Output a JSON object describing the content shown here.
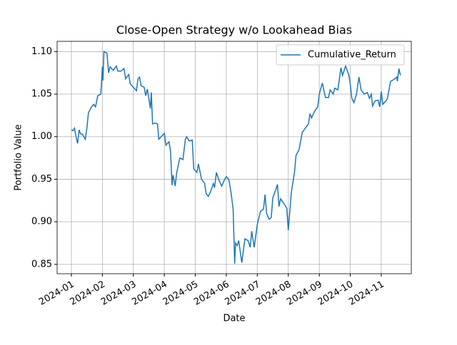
{
  "chart_data": {
    "type": "line",
    "title": "Close-Open Strategy w/o Lookahead Bias",
    "x_label": "Date",
    "y_label": "Portfolio Value",
    "x": [
      0,
      0.05,
      0.1,
      0.15,
      0.2,
      0.25,
      0.3,
      0.35,
      0.45,
      0.5,
      0.55,
      0.65,
      0.72,
      0.78,
      0.85,
      0.95,
      1.0,
      1.02,
      1.05,
      1.15,
      1.2,
      1.25,
      1.35,
      1.45,
      1.5,
      1.6,
      1.7,
      1.75,
      1.85,
      1.9,
      2.0,
      2.1,
      2.15,
      2.2,
      2.25,
      2.35,
      2.4,
      2.45,
      2.5,
      2.55,
      2.58,
      2.62,
      2.7,
      2.78,
      2.82,
      2.9,
      3.0,
      3.05,
      3.15,
      3.2,
      3.25,
      3.28,
      3.35,
      3.4,
      3.5,
      3.6,
      3.68,
      3.72,
      3.8,
      3.9,
      3.95,
      4.05,
      4.1,
      4.2,
      4.3,
      4.35,
      4.42,
      4.5,
      4.58,
      4.62,
      4.68,
      4.75,
      4.85,
      4.95,
      5.0,
      5.08,
      5.15,
      5.22,
      5.27,
      5.3,
      5.35,
      5.4,
      5.5,
      5.6,
      5.7,
      5.77,
      5.82,
      5.9,
      6.0,
      6.1,
      6.2,
      6.25,
      6.3,
      6.38,
      6.45,
      6.5,
      6.6,
      6.65,
      6.7,
      6.75,
      6.85,
      6.95,
      7.0,
      7.1,
      7.2,
      7.25,
      7.35,
      7.45,
      7.55,
      7.65,
      7.7,
      7.75,
      7.85,
      7.95,
      8.0,
      8.1,
      8.2,
      8.3,
      8.35,
      8.45,
      8.5,
      8.6,
      8.7,
      8.75,
      8.85,
      8.95,
      9.0,
      9.05,
      9.12,
      9.2,
      9.28,
      9.35,
      9.45,
      9.55,
      9.62,
      9.68,
      9.72,
      9.8,
      9.9,
      9.95,
      10.0,
      10.05,
      10.15,
      10.2,
      10.25,
      10.3,
      10.4,
      10.5,
      10.52,
      10.57,
      10.62
    ],
    "series": [
      {
        "name": "Cumulative_Return",
        "color": "#1f77b4",
        "values": [
          1.008,
          1.007,
          1.01,
          1.0,
          0.992,
          1.008,
          1.003,
          1.003,
          0.997,
          1.01,
          1.028,
          1.035,
          1.038,
          1.035,
          1.048,
          1.05,
          1.082,
          1.066,
          1.1,
          1.098,
          1.075,
          1.082,
          1.078,
          1.083,
          1.077,
          1.077,
          1.08,
          1.068,
          1.073,
          1.062,
          1.058,
          1.054,
          1.068,
          1.07,
          1.06,
          1.058,
          1.048,
          1.056,
          1.045,
          1.033,
          1.052,
          1.015,
          1.016,
          1.015,
          0.997,
          1.0,
          1.004,
          0.99,
          0.994,
          0.983,
          0.943,
          0.955,
          0.942,
          0.958,
          0.975,
          0.973,
          0.997,
          1.0,
          0.995,
          0.996,
          0.962,
          0.958,
          0.968,
          0.95,
          0.945,
          0.933,
          0.93,
          0.936,
          0.945,
          0.94,
          0.958,
          0.95,
          0.942,
          0.95,
          0.953,
          0.95,
          0.935,
          0.915,
          0.851,
          0.875,
          0.872,
          0.878,
          0.852,
          0.88,
          0.878,
          0.87,
          0.889,
          0.87,
          0.897,
          0.912,
          0.915,
          0.932,
          0.91,
          0.903,
          0.905,
          0.928,
          0.938,
          0.944,
          0.918,
          0.927,
          0.922,
          0.916,
          0.89,
          0.935,
          0.958,
          0.978,
          0.985,
          1.005,
          1.01,
          1.015,
          1.027,
          1.022,
          1.03,
          1.035,
          1.05,
          1.063,
          1.046,
          1.046,
          1.055,
          1.05,
          1.057,
          1.055,
          1.081,
          1.072,
          1.083,
          1.073,
          1.062,
          1.045,
          1.04,
          1.05,
          1.07,
          1.055,
          1.05,
          1.052,
          1.045,
          1.05,
          1.036,
          1.042,
          1.043,
          1.035,
          1.053,
          1.038,
          1.042,
          1.045,
          1.055,
          1.065,
          1.067,
          1.07,
          1.065,
          1.08,
          1.072
        ]
      }
    ],
    "xlim": [
      -0.46,
      10.97
    ],
    "xticks": [
      {
        "value": 0,
        "label": "2024-01"
      },
      {
        "value": 1,
        "label": "2024-02"
      },
      {
        "value": 2,
        "label": "2024-03"
      },
      {
        "value": 3,
        "label": "2024-04"
      },
      {
        "value": 4,
        "label": "2024-05"
      },
      {
        "value": 5,
        "label": "2024-06"
      },
      {
        "value": 6,
        "label": "2024-07"
      },
      {
        "value": 7,
        "label": "2024-08"
      },
      {
        "value": 8,
        "label": "2024-09"
      },
      {
        "value": 9,
        "label": "2024-10"
      },
      {
        "value": 10,
        "label": "2024-11"
      }
    ],
    "ylim": [
      0.839,
      1.112
    ],
    "yticks": [
      {
        "value": 0.85,
        "label": "0.85"
      },
      {
        "value": 0.9,
        "label": "0.90"
      },
      {
        "value": 0.95,
        "label": "0.95"
      },
      {
        "value": 1.0,
        "label": "1.00"
      },
      {
        "value": 1.05,
        "label": "1.05"
      },
      {
        "value": 1.1,
        "label": "1.10"
      }
    ],
    "grid": true,
    "legend": "upper right"
  }
}
